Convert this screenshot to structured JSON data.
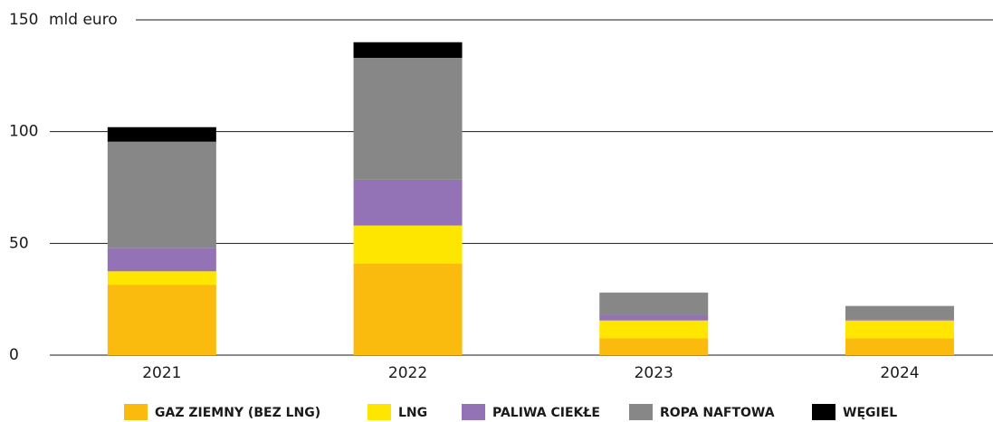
{
  "chart_data": {
    "type": "stacked_bar",
    "y_unit": "mld euro",
    "categories": [
      "2021",
      "2022",
      "2023",
      "2024"
    ],
    "series": [
      {
        "name": "GAZ ZIEMNY (BEZ LNG)",
        "color": "#fbba0e",
        "values": [
          31.5,
          41,
          7.5,
          7.5
        ]
      },
      {
        "name": "LNG",
        "color": "#ffe600",
        "values": [
          6,
          17,
          8,
          8
        ]
      },
      {
        "name": "PALIWA CIEKŁE",
        "color": "#9373b5",
        "values": [
          10.5,
          20.5,
          2.5,
          0.5
        ]
      },
      {
        "name": "ROPA NAFTOWA",
        "color": "#878787",
        "values": [
          47.5,
          54.5,
          10,
          6
        ]
      },
      {
        "name": "WĘGIEL",
        "color": "#000000",
        "values": [
          6.5,
          7,
          0,
          0
        ]
      }
    ],
    "ylim": [
      0,
      150
    ],
    "yticks": [
      0,
      50,
      100,
      150
    ],
    "grid": true
  }
}
